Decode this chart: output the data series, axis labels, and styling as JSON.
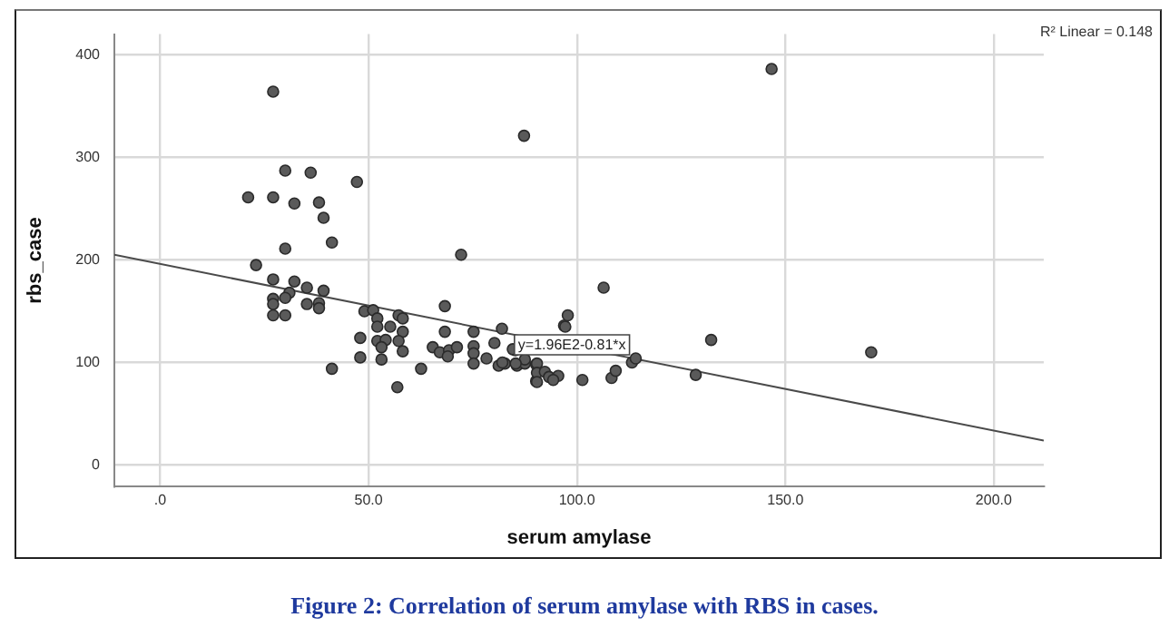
{
  "chart_data": {
    "type": "scatter",
    "title": "Figure 2: Correlation of serum amylase with RBS in cases.",
    "xlabel": "serum amylase",
    "ylabel": "rbs_case",
    "xlim": [
      -11,
      212
    ],
    "ylim": [
      -21,
      420
    ],
    "xticks": [
      {
        "value": 0,
        "label": ".0"
      },
      {
        "value": 50,
        "label": "50.0"
      },
      {
        "value": 100,
        "label": "100.0"
      },
      {
        "value": 150,
        "label": "150.0"
      },
      {
        "value": 200,
        "label": "200.0"
      }
    ],
    "yticks": [
      0,
      100,
      200,
      300,
      400
    ],
    "grid": true,
    "legend": false,
    "marker": "circle",
    "annotations": [
      "R² Linear = 0.148",
      {
        "text": "y=1.96E2-0.81*x",
        "x": 85,
        "y": 127
      }
    ],
    "series": [
      {
        "color": "#5a5a5a",
        "x": [
          27.1,
          87.3,
          30,
          36.1,
          47.2,
          21.1,
          27.1,
          32.2,
          38.1,
          39.2,
          41.2,
          30,
          72.2,
          146.7,
          23,
          27.1,
          32.2,
          35.2,
          39.2,
          31,
          30,
          27.1,
          27.1,
          35.2,
          38.1,
          38.1,
          27.1,
          30,
          49,
          51.1,
          52.1,
          52.1,
          55.2,
          57.2,
          58.2,
          58.2,
          68.3,
          68.3,
          48,
          52.1,
          54.1,
          57.2,
          53.1,
          58.2,
          65.4,
          67.1,
          69.3,
          71.2,
          69,
          75.2,
          75.2,
          75.2,
          75.2,
          80.2,
          78.3,
          82,
          81.2,
          82.7,
          85.2,
          85.6,
          87.5,
          90.2,
          90.2,
          48,
          53.1,
          41.2,
          62.6,
          56.9,
          96.9,
          106.4,
          97.8,
          97.2,
          90.4,
          87.5,
          85.3,
          82.1,
          90.4,
          92.3,
          93.3,
          95.5,
          94.3,
          90.4,
          101.3,
          108.3,
          109.3,
          113.2,
          114.1,
          128.5,
          132.2,
          170.6,
          84.6
        ],
        "values": [
          364,
          321,
          287,
          285,
          276,
          261,
          261,
          255,
          256,
          241,
          217,
          211,
          205,
          386,
          195,
          181,
          179,
          173,
          170,
          168,
          163,
          162,
          157,
          157,
          158,
          153,
          146,
          146,
          150,
          151,
          143,
          135,
          135,
          146,
          143,
          130,
          155,
          130,
          124,
          121,
          122,
          121,
          115,
          111,
          115,
          110,
          112,
          115,
          106,
          130,
          116,
          109,
          99,
          119,
          104,
          133,
          97,
          99,
          112,
          97,
          99,
          98,
          82,
          105,
          103,
          94,
          94,
          76,
          136,
          173,
          146,
          135,
          99,
          103,
          99,
          100,
          90,
          91,
          86,
          87,
          83,
          81,
          83,
          85,
          92,
          100,
          104,
          88,
          122,
          110,
          113
        ]
      },
      {
        "type": "line",
        "color": "#4a4a4a",
        "marker": "none",
        "x": [
          -11,
          212
        ],
        "values": [
          205,
          24
        ]
      }
    ]
  }
}
